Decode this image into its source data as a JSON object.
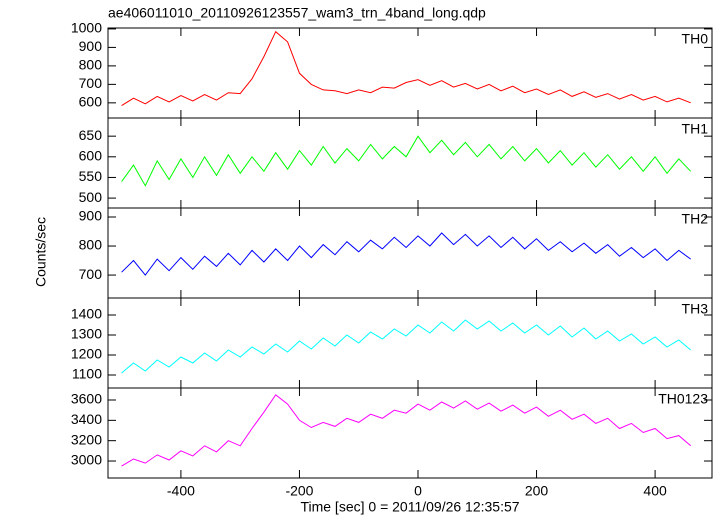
{
  "chart_data": [
    {
      "type": "line",
      "title": "ae406011010_20110926123557_wam3_trn_4band_long.qdp",
      "x": [
        -500,
        -480,
        -460,
        -440,
        -420,
        -400,
        -380,
        -360,
        -340,
        -320,
        -300,
        -280,
        -260,
        -240,
        -220,
        -200,
        -180,
        -160,
        -140,
        -120,
        -100,
        -80,
        -60,
        -40,
        -20,
        0,
        20,
        40,
        60,
        80,
        100,
        120,
        140,
        160,
        180,
        200,
        220,
        240,
        260,
        280,
        300,
        320,
        340,
        360,
        380,
        400,
        420,
        440,
        460
      ],
      "series": [
        {
          "name": "TH0",
          "color": "#ff0000",
          "values": [
            585,
            625,
            595,
            635,
            605,
            640,
            610,
            645,
            615,
            655,
            650,
            730,
            850,
            985,
            930,
            760,
            700,
            670,
            665,
            650,
            670,
            655,
            685,
            680,
            710,
            725,
            695,
            720,
            685,
            705,
            675,
            700,
            665,
            690,
            655,
            675,
            645,
            670,
            635,
            660,
            630,
            650,
            620,
            645,
            615,
            635,
            605,
            625,
            600
          ]
        }
      ],
      "xlim": [
        -523,
        496
      ],
      "xticks": [
        -400,
        -200,
        0,
        200,
        400
      ],
      "ylim": [
        518,
        1005
      ],
      "yticks": [
        600,
        700,
        800,
        900,
        1000
      ]
    },
    {
      "type": "line",
      "x": [
        -500,
        -480,
        -460,
        -440,
        -420,
        -400,
        -380,
        -360,
        -340,
        -320,
        -300,
        -280,
        -260,
        -240,
        -220,
        -200,
        -180,
        -160,
        -140,
        -120,
        -100,
        -80,
        -60,
        -40,
        -20,
        0,
        20,
        40,
        60,
        80,
        100,
        120,
        140,
        160,
        180,
        200,
        220,
        240,
        260,
        280,
        300,
        320,
        340,
        360,
        380,
        400,
        420,
        440,
        460
      ],
      "series": [
        {
          "name": "TH1",
          "color": "#00ff00",
          "values": [
            540,
            580,
            530,
            590,
            545,
            595,
            550,
            600,
            555,
            605,
            560,
            600,
            565,
            610,
            570,
            615,
            580,
            625,
            585,
            620,
            590,
            630,
            595,
            625,
            600,
            650,
            610,
            640,
            605,
            635,
            600,
            630,
            595,
            625,
            590,
            620,
            585,
            615,
            580,
            610,
            575,
            605,
            570,
            600,
            565,
            600,
            560,
            595,
            565
          ]
        }
      ],
      "xlim": [
        -523,
        496
      ],
      "xticks": [
        -400,
        -200,
        0,
        200,
        400
      ],
      "ylim": [
        476,
        694
      ],
      "yticks": [
        500,
        550,
        600,
        650
      ]
    },
    {
      "type": "line",
      "ylabel": "Counts/sec",
      "x": [
        -500,
        -480,
        -460,
        -440,
        -420,
        -400,
        -380,
        -360,
        -340,
        -320,
        -300,
        -280,
        -260,
        -240,
        -220,
        -200,
        -180,
        -160,
        -140,
        -120,
        -100,
        -80,
        -60,
        -40,
        -20,
        0,
        20,
        40,
        60,
        80,
        100,
        120,
        140,
        160,
        180,
        200,
        220,
        240,
        260,
        280,
        300,
        320,
        340,
        360,
        380,
        400,
        420,
        440,
        460
      ],
      "series": [
        {
          "name": "TH2",
          "color": "#0000ff",
          "values": [
            710,
            750,
            700,
            755,
            715,
            760,
            720,
            765,
            730,
            775,
            735,
            785,
            745,
            790,
            750,
            800,
            760,
            805,
            770,
            815,
            780,
            820,
            790,
            830,
            795,
            835,
            800,
            845,
            805,
            840,
            800,
            835,
            795,
            830,
            790,
            825,
            785,
            815,
            780,
            810,
            775,
            805,
            765,
            795,
            760,
            790,
            750,
            785,
            755
          ]
        }
      ],
      "xlim": [
        -523,
        496
      ],
      "xticks": [
        -400,
        -200,
        0,
        200,
        400
      ],
      "ylim": [
        621,
        931
      ],
      "yticks": [
        700,
        800,
        900
      ]
    },
    {
      "type": "line",
      "x": [
        -500,
        -480,
        -460,
        -440,
        -420,
        -400,
        -380,
        -360,
        -340,
        -320,
        -300,
        -280,
        -260,
        -240,
        -220,
        -200,
        -180,
        -160,
        -140,
        -120,
        -100,
        -80,
        -60,
        -40,
        -20,
        0,
        20,
        40,
        60,
        80,
        100,
        120,
        140,
        160,
        180,
        200,
        220,
        240,
        260,
        280,
        300,
        320,
        340,
        360,
        380,
        400,
        420,
        440,
        460
      ],
      "series": [
        {
          "name": "TH3",
          "color": "#00ffff",
          "values": [
            1110,
            1160,
            1120,
            1175,
            1140,
            1190,
            1160,
            1210,
            1170,
            1225,
            1190,
            1240,
            1205,
            1255,
            1215,
            1270,
            1230,
            1285,
            1245,
            1300,
            1260,
            1315,
            1280,
            1330,
            1295,
            1350,
            1310,
            1365,
            1320,
            1375,
            1330,
            1370,
            1320,
            1360,
            1310,
            1350,
            1300,
            1345,
            1290,
            1335,
            1280,
            1320,
            1270,
            1305,
            1255,
            1290,
            1240,
            1275,
            1225
          ]
        }
      ],
      "xlim": [
        -523,
        496
      ],
      "xticks": [
        -400,
        -200,
        0,
        200,
        400
      ],
      "ylim": [
        1035,
        1485
      ],
      "yticks": [
        1100,
        1200,
        1300,
        1400
      ]
    },
    {
      "type": "line",
      "xlabel": "Time [sec] 0 = 2011/09/26 12:35:57",
      "x": [
        -500,
        -480,
        -460,
        -440,
        -420,
        -400,
        -380,
        -360,
        -340,
        -320,
        -300,
        -280,
        -260,
        -240,
        -220,
        -200,
        -180,
        -160,
        -140,
        -120,
        -100,
        -80,
        -60,
        -40,
        -20,
        0,
        20,
        40,
        60,
        80,
        100,
        120,
        140,
        160,
        180,
        200,
        220,
        240,
        260,
        280,
        300,
        320,
        340,
        360,
        380,
        400,
        420,
        440,
        460
      ],
      "series": [
        {
          "name": "TH0123",
          "color": "#ff00ff",
          "values": [
            2950,
            3020,
            2980,
            3060,
            3010,
            3100,
            3050,
            3150,
            3090,
            3200,
            3150,
            3320,
            3480,
            3650,
            3560,
            3400,
            3330,
            3380,
            3340,
            3420,
            3380,
            3460,
            3420,
            3500,
            3470,
            3560,
            3500,
            3580,
            3520,
            3590,
            3510,
            3570,
            3490,
            3550,
            3470,
            3530,
            3440,
            3500,
            3410,
            3460,
            3370,
            3420,
            3320,
            3370,
            3280,
            3320,
            3220,
            3250,
            3150
          ]
        }
      ],
      "xlim": [
        -523,
        496
      ],
      "xticks": [
        -400,
        -200,
        0,
        200,
        400
      ],
      "ylim": [
        2833,
        3718
      ],
      "yticks": [
        3000,
        3200,
        3400,
        3600
      ]
    }
  ]
}
